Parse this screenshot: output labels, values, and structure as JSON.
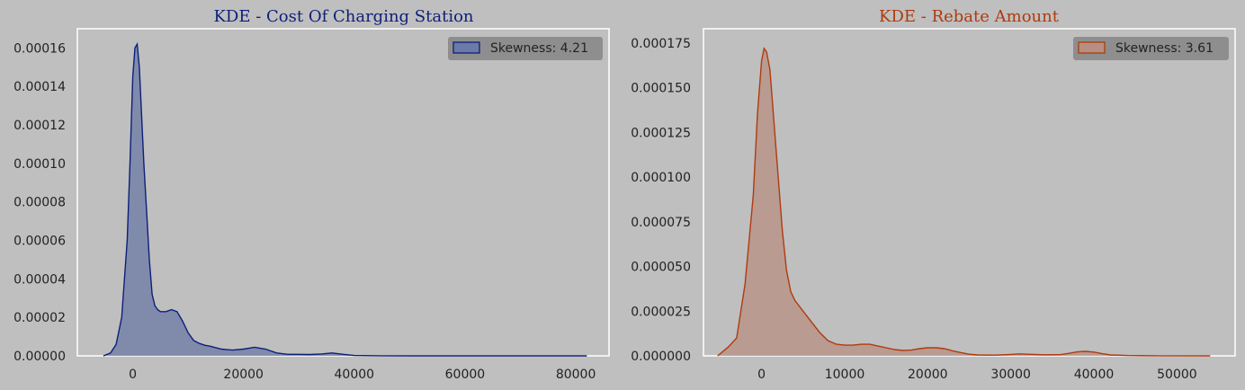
{
  "chart_data": [
    {
      "type": "area",
      "title": "KDE - Cost Of Charging Station",
      "title_color": "#0d1f7a",
      "xlabel": "",
      "ylabel": "",
      "xlim": [
        -10000,
        86000
      ],
      "ylim": [
        0,
        0.00017
      ],
      "x_ticks": [
        0,
        20000,
        40000,
        60000,
        80000
      ],
      "x_tick_labels": [
        "0",
        "20000",
        "40000",
        "60000",
        "80000"
      ],
      "y_ticks": [
        0,
        2e-05,
        4e-05,
        6e-05,
        8e-05,
        0.0001,
        0.00012,
        0.00014,
        0.00016
      ],
      "y_tick_labels": [
        "0.00000",
        "0.00002",
        "0.00004",
        "0.00006",
        "0.00008",
        "0.00010",
        "0.00012",
        "0.00014",
        "0.00016"
      ],
      "grid": false,
      "legend": {
        "label": "Skewness: 4.21",
        "placement": "top-right"
      },
      "line_color": "#0d1f7a",
      "fill_color": "#6b7aa6",
      "x": [
        -5300,
        -4000,
        -3000,
        -2000,
        -1000,
        -500,
        0,
        400,
        800,
        1200,
        1600,
        2000,
        2500,
        3000,
        3500,
        4000,
        4500,
        5000,
        6000,
        7000,
        8000,
        9000,
        10000,
        11000,
        12000,
        13000,
        14000,
        16000,
        18000,
        20000,
        22000,
        24000,
        26000,
        28000,
        30000,
        32000,
        34000,
        36000,
        38000,
        40000,
        45000,
        50000,
        60000,
        70000,
        82000
      ],
      "y": [
        0,
        1.5e-06,
        6e-06,
        2e-05,
        6e-05,
        0.0001,
        0.000145,
        0.00016,
        0.000162,
        0.00015,
        0.000125,
        0.0001,
        7.5e-05,
        5e-05,
        3.2e-05,
        2.6e-05,
        2.4e-05,
        2.3e-05,
        2.3e-05,
        2.4e-05,
        2.3e-05,
        1.8e-05,
        1.2e-05,
        8e-06,
        6.5e-06,
        5.5e-06,
        5e-06,
        3.5e-06,
        3e-06,
        3.5e-06,
        4.5e-06,
        3.5e-06,
        1.5e-06,
        8e-07,
        8e-07,
        7e-07,
        1e-06,
        1.5e-06,
        8e-07,
        2e-07,
        5e-08,
        2e-08,
        0,
        0,
        0
      ]
    },
    {
      "type": "area",
      "title": "KDE - Rebate Amount",
      "title_color": "#b03a0e",
      "xlabel": "",
      "ylabel": "",
      "xlim": [
        -7000,
        57000
      ],
      "ylim": [
        0,
        0.000183
      ],
      "x_ticks": [
        0,
        10000,
        20000,
        30000,
        40000,
        50000
      ],
      "x_tick_labels": [
        "0",
        "10000",
        "20000",
        "30000",
        "40000",
        "50000"
      ],
      "y_ticks": [
        0,
        2.5e-05,
        5e-05,
        7.5e-05,
        0.0001,
        0.000125,
        0.00015,
        0.000175
      ],
      "y_tick_labels": [
        "0.000000",
        "0.000025",
        "0.000050",
        "0.000075",
        "0.000100",
        "0.000125",
        "0.000150",
        "0.000175"
      ],
      "grid": false,
      "legend": {
        "label": "Skewness: 3.61",
        "placement": "top-right"
      },
      "line_color": "#b03a0e",
      "fill_color": "#b78f82",
      "x": [
        -5300,
        -4000,
        -3000,
        -2000,
        -1000,
        -500,
        0,
        300,
        600,
        1000,
        1500,
        2000,
        2500,
        3000,
        3500,
        4000,
        5000,
        6000,
        7000,
        8000,
        9000,
        10000,
        11000,
        12000,
        13000,
        14000,
        15000,
        16000,
        17000,
        18000,
        19000,
        20000,
        21000,
        22000,
        23000,
        24000,
        25000,
        26000,
        28000,
        30000,
        31000,
        32000,
        34000,
        36000,
        37000,
        38000,
        39000,
        40000,
        41000,
        42000,
        44000,
        48000,
        54000
      ],
      "y": [
        0,
        5e-06,
        1e-05,
        4e-05,
        9e-05,
        0.000135,
        0.000165,
        0.000172,
        0.00017,
        0.00016,
        0.00013,
        0.0001,
        7e-05,
        4.8e-05,
        3.6e-05,
        3.1e-05,
        2.5e-05,
        1.9e-05,
        1.3e-05,
        8.5e-06,
        6.5e-06,
        6e-06,
        6e-06,
        6.5e-06,
        6.5e-06,
        5.5e-06,
        4.5e-06,
        3.5e-06,
        3e-06,
        3.2e-06,
        4e-06,
        4.5e-06,
        4.5e-06,
        4e-06,
        2.8e-06,
        1.8e-06,
        9e-07,
        5e-07,
        4e-07,
        8e-07,
        1.1e-06,
        9e-07,
        6e-07,
        7e-07,
        1.4e-06,
        2.2e-06,
        2.5e-06,
        2.1e-06,
        1.2e-06,
        5e-07,
        2e-07,
        5e-08,
        0
      ]
    }
  ]
}
